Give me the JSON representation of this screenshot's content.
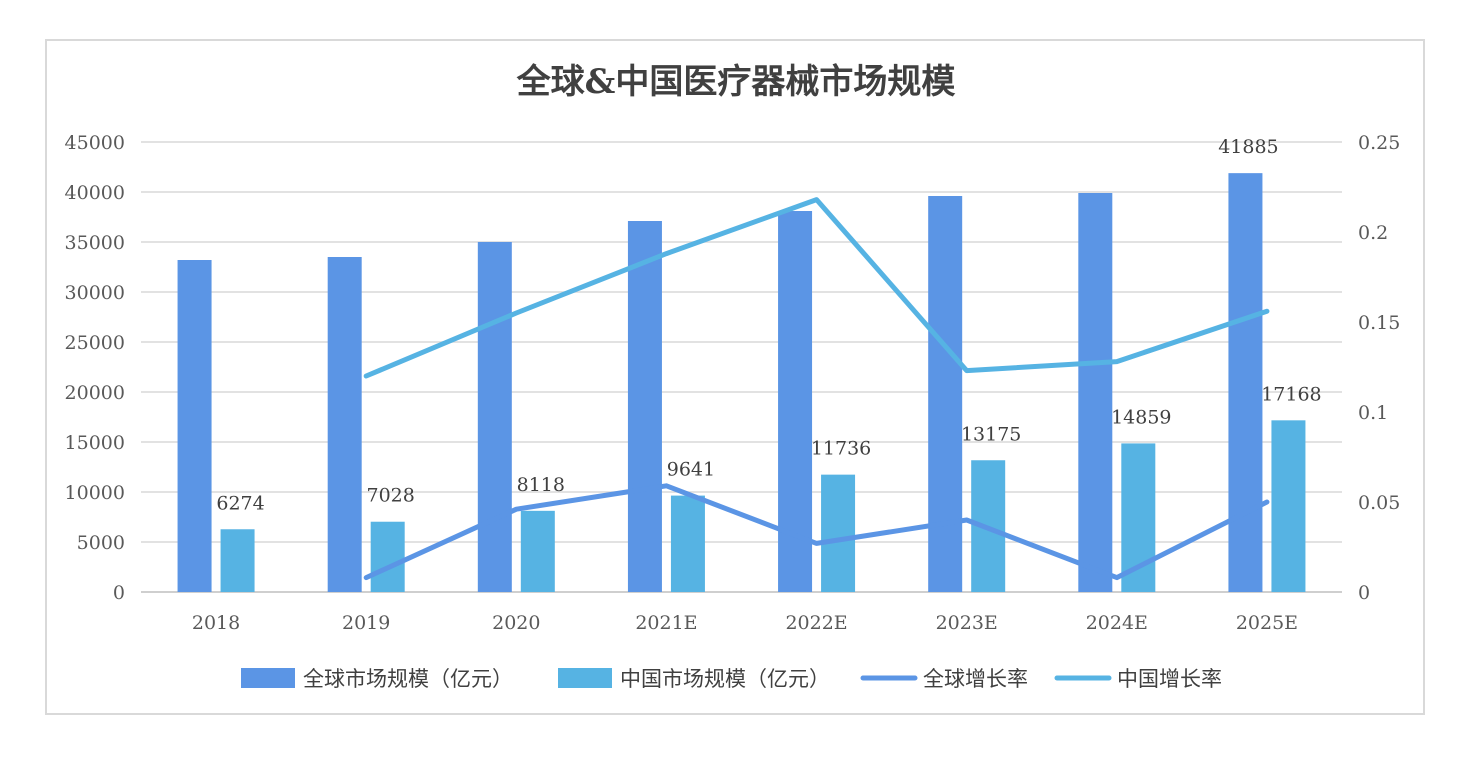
{
  "chart_data": {
    "type": "bar",
    "title": "全球&中国医疗器械市场规模",
    "categories": [
      "2018",
      "2019",
      "2020",
      "2021E",
      "2022E",
      "2023E",
      "2024E",
      "2025E"
    ],
    "series": [
      {
        "name": "全球市场规模（亿元）",
        "type": "bar",
        "axis": "left",
        "color": "#5B95E5",
        "values": [
          33200,
          33500,
          35000,
          37100,
          38100,
          39600,
          39900,
          41885
        ],
        "data_labels": [
          "",
          "",
          "",
          "",
          "",
          "",
          "",
          "41885"
        ]
      },
      {
        "name": "中国市场规模（亿元）",
        "type": "bar",
        "axis": "left",
        "color": "#56B3E3",
        "values": [
          6274,
          7028,
          8118,
          9641,
          11736,
          13175,
          14859,
          17168
        ],
        "data_labels": [
          "6274",
          "7028",
          "8118",
          "9641",
          "11736",
          "13175",
          "14859",
          "17168"
        ]
      },
      {
        "name": "全球增长率",
        "type": "line",
        "axis": "right",
        "color": "#5B95E5",
        "values": [
          null,
          0.008,
          0.046,
          0.059,
          0.027,
          0.04,
          0.008,
          0.05
        ]
      },
      {
        "name": "中国增长率",
        "type": "line",
        "axis": "right",
        "color": "#56B3E3",
        "values": [
          null,
          0.12,
          0.155,
          0.188,
          0.218,
          0.123,
          0.128,
          0.156
        ]
      }
    ],
    "y_left": {
      "ylim": [
        0,
        45000
      ],
      "ticks": [
        "0",
        "5000",
        "10000",
        "15000",
        "20000",
        "25000",
        "30000",
        "35000",
        "40000",
        "45000"
      ]
    },
    "y_right": {
      "ylim": [
        0,
        0.25
      ],
      "ticks": [
        "0",
        "0.05",
        "0.1",
        "0.15",
        "0.2",
        "0.25"
      ]
    },
    "grid": true,
    "legend_position": "bottom"
  }
}
